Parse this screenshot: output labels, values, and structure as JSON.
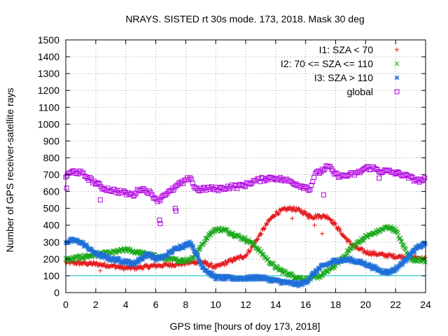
{
  "chart_data": {
    "type": "scatter",
    "title": "NRAYS. SISTED rt 30s mode. 173, 2018. Mask 30 deg",
    "xlabel": "GPS time [hours of doy 173, 2018]",
    "ylabel": "Number of GPS receiver-satellite rays",
    "xlim": [
      0,
      24
    ],
    "ylim": [
      0,
      1500
    ],
    "xticks": [
      0,
      2,
      4,
      6,
      8,
      10,
      12,
      14,
      16,
      18,
      20,
      22,
      24
    ],
    "yticks": [
      0,
      100,
      200,
      300,
      400,
      500,
      600,
      700,
      800,
      900,
      1000,
      1100,
      1200,
      1300,
      1400,
      1500
    ],
    "grid": true,
    "legend_position": "top-right",
    "reference_line": {
      "y": 100,
      "color": "#00c8c8"
    },
    "series": [
      {
        "name": "I1: SZA < 70",
        "marker": "+",
        "color": "#e41a1c",
        "x": [
          0,
          1,
          2,
          3,
          4,
          5,
          6,
          7,
          8,
          9,
          10,
          11,
          12,
          12.5,
          13,
          13.5,
          14,
          14.5,
          15,
          15.5,
          16,
          16.5,
          17,
          17.5,
          18,
          18.5,
          19,
          19.5,
          20,
          21,
          22,
          23,
          24
        ],
        "y": [
          180,
          175,
          170,
          160,
          145,
          150,
          160,
          165,
          175,
          185,
          150,
          190,
          220,
          280,
          350,
          420,
          470,
          490,
          500,
          490,
          470,
          450,
          455,
          450,
          400,
          340,
          290,
          260,
          240,
          225,
          215,
          210,
          200
        ]
      },
      {
        "name": "I2: 70 <= SZA <= 110",
        "marker": "x",
        "color": "#1aa81a",
        "x": [
          0,
          1,
          2,
          3,
          4,
          5,
          6,
          7,
          8,
          8.5,
          9,
          9.5,
          10,
          10.5,
          11,
          11.5,
          12,
          12.5,
          13,
          13.5,
          14,
          14.5,
          15,
          15.5,
          16,
          16.5,
          17,
          17.5,
          18,
          18.5,
          19,
          19.5,
          20,
          20.5,
          21,
          21.5,
          22,
          22.5,
          23,
          24
        ],
        "y": [
          195,
          210,
          225,
          235,
          255,
          235,
          215,
          195,
          190,
          210,
          270,
          340,
          375,
          375,
          355,
          335,
          315,
          290,
          240,
          190,
          150,
          125,
          105,
          90,
          80,
          85,
          100,
          130,
          165,
          210,
          260,
          300,
          330,
          350,
          370,
          390,
          370,
          280,
          200,
          190
        ]
      },
      {
        "name": "I3: SZA > 110",
        "marker": "*",
        "color": "#1f6fd8",
        "x": [
          0,
          0.5,
          1,
          1.5,
          2,
          3,
          4,
          4.5,
          5,
          5.5,
          6,
          6.5,
          7,
          7.5,
          8,
          8.3,
          8.6,
          9,
          9.5,
          10,
          11,
          12,
          13,
          14,
          15,
          15.5,
          16,
          16.5,
          17,
          17.5,
          18,
          19,
          20,
          21,
          21.5,
          22,
          22.5,
          23,
          23.5,
          24
        ],
        "y": [
          300,
          310,
          300,
          265,
          230,
          200,
          185,
          170,
          200,
          230,
          200,
          210,
          240,
          270,
          280,
          300,
          250,
          170,
          120,
          90,
          85,
          85,
          90,
          70,
          55,
          50,
          60,
          110,
          150,
          170,
          190,
          195,
          170,
          130,
          120,
          140,
          180,
          230,
          270,
          290
        ]
      },
      {
        "name": "global",
        "marker": "square",
        "color": "#b000e0",
        "x": [
          0,
          0.5,
          1,
          1.5,
          2,
          2.5,
          3,
          3.5,
          4,
          4.5,
          5,
          5.5,
          6,
          6.2,
          6.5,
          7,
          7.5,
          8,
          8.3,
          8.6,
          9,
          9.5,
          10,
          10.5,
          11,
          11.5,
          12,
          12.5,
          13,
          13.5,
          14,
          14.5,
          15,
          15.5,
          16,
          16.3,
          16.6,
          17,
          17.5,
          18,
          18.5,
          19,
          19.5,
          20,
          20.5,
          21,
          21.5,
          22,
          22.5,
          23,
          23.5,
          24
        ],
        "y": [
          690,
          720,
          710,
          680,
          650,
          620,
          610,
          600,
          590,
          580,
          620,
          600,
          560,
          545,
          580,
          600,
          640,
          660,
          690,
          620,
          610,
          620,
          615,
          620,
          630,
          630,
          640,
          660,
          670,
          680,
          680,
          670,
          660,
          640,
          625,
          615,
          700,
          720,
          750,
          700,
          690,
          700,
          710,
          740,
          740,
          720,
          720,
          710,
          700,
          680,
          665,
          670
        ]
      }
    ],
    "outliers": [
      {
        "series": "global",
        "x": 0.05,
        "y": 620
      },
      {
        "series": "global",
        "x": 2.3,
        "y": 550
      },
      {
        "series": "global",
        "x": 6.25,
        "y": 430
      },
      {
        "series": "global",
        "x": 6.3,
        "y": 410
      },
      {
        "series": "global",
        "x": 7.3,
        "y": 500
      },
      {
        "series": "global",
        "x": 7.35,
        "y": 485
      },
      {
        "series": "global",
        "x": 17.2,
        "y": 580
      },
      {
        "series": "global",
        "x": 20.9,
        "y": 680
      },
      {
        "series": "I1: SZA < 70",
        "x": 2.3,
        "y": 130
      },
      {
        "series": "I1: SZA < 70",
        "x": 15.1,
        "y": 440
      },
      {
        "series": "I1: SZA < 70",
        "x": 16.2,
        "y": 440
      },
      {
        "series": "I1: SZA < 70",
        "x": 16.6,
        "y": 400
      },
      {
        "series": "I1: SZA < 70",
        "x": 17.1,
        "y": 350
      }
    ]
  }
}
